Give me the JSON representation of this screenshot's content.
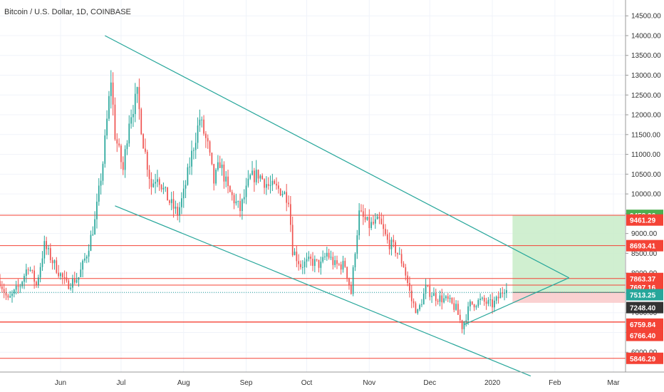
{
  "header": {
    "title": "Bitcoin / U.S. Dollar, 1D, COINBASE"
  },
  "colors": {
    "up": "#26a69a",
    "down": "#ef5350",
    "trendline": "#26a69a",
    "resistance": "#f44336",
    "target_zone": "#c8ecc8",
    "stop_zone": "#f9cccc",
    "grid": "#f0f3fa",
    "axis_text": "#333333"
  },
  "chart_data": {
    "type": "candlestick",
    "symbol": "Bitcoin / U.S. Dollar",
    "interval": "1D",
    "exchange": "COINBASE",
    "ylim": [
      5500,
      14900
    ],
    "y_ticks": [
      6000,
      6500,
      7000,
      7500,
      8000,
      8500,
      9000,
      9500,
      10000,
      10500,
      11000,
      11500,
      12000,
      12500,
      13000,
      13500,
      14000,
      14500
    ],
    "y_tick_labels": [
      "6000.00",
      "6500.00",
      "7000.00",
      "7500.00",
      "8000.00",
      "8500.00",
      "9000.00",
      "9500.00",
      "10000.00",
      "10500.00",
      "11000.00",
      "11500.00",
      "12000.00",
      "12500.00",
      "13000.00",
      "13500.00",
      "14000.00",
      "14500.00"
    ],
    "x_range": [
      "2019-05-02",
      "2020-03-07"
    ],
    "x_ticks": [
      {
        "label": "Jun",
        "date": "2019-06-01"
      },
      {
        "label": "Jul",
        "date": "2019-07-01"
      },
      {
        "label": "Aug",
        "date": "2019-08-01"
      },
      {
        "label": "Sep",
        "date": "2019-09-01"
      },
      {
        "label": "Oct",
        "date": "2019-10-01"
      },
      {
        "label": "Nov",
        "date": "2019-11-01"
      },
      {
        "label": "Dec",
        "date": "2019-12-01"
      },
      {
        "label": "2020",
        "date": "2020-01-01"
      },
      {
        "label": "Feb",
        "date": "2020-02-01"
      },
      {
        "label": "Mar",
        "date": "2020-03-01"
      }
    ],
    "price_path": [
      {
        "date": "2019-05-02",
        "price": 7800
      },
      {
        "date": "2019-05-06",
        "price": 7300
      },
      {
        "date": "2019-05-12",
        "price": 7700
      },
      {
        "date": "2019-05-16",
        "price": 8200
      },
      {
        "date": "2019-05-20",
        "price": 7700
      },
      {
        "date": "2019-05-24",
        "price": 8700
      },
      {
        "date": "2019-05-28",
        "price": 8300
      },
      {
        "date": "2019-06-04",
        "price": 7700
      },
      {
        "date": "2019-06-10",
        "price": 7900
      },
      {
        "date": "2019-06-14",
        "price": 8500
      },
      {
        "date": "2019-06-18",
        "price": 9300
      },
      {
        "date": "2019-06-22",
        "price": 10800
      },
      {
        "date": "2019-06-26",
        "price": 12900
      },
      {
        "date": "2019-06-28",
        "price": 11500
      },
      {
        "date": "2019-07-02",
        "price": 10600
      },
      {
        "date": "2019-07-05",
        "price": 11900
      },
      {
        "date": "2019-07-09",
        "price": 12500
      },
      {
        "date": "2019-07-12",
        "price": 11300
      },
      {
        "date": "2019-07-16",
        "price": 10200
      },
      {
        "date": "2019-07-19",
        "price": 10500
      },
      {
        "date": "2019-07-22",
        "price": 10100
      },
      {
        "date": "2019-07-25",
        "price": 9800
      },
      {
        "date": "2019-07-29",
        "price": 9500
      },
      {
        "date": "2019-08-01",
        "price": 10000
      },
      {
        "date": "2019-08-05",
        "price": 11000
      },
      {
        "date": "2019-08-09",
        "price": 11900
      },
      {
        "date": "2019-08-13",
        "price": 11200
      },
      {
        "date": "2019-08-16",
        "price": 10300
      },
      {
        "date": "2019-08-19",
        "price": 10800
      },
      {
        "date": "2019-08-23",
        "price": 10100
      },
      {
        "date": "2019-08-29",
        "price": 9600
      },
      {
        "date": "2019-09-03",
        "price": 10400
      },
      {
        "date": "2019-09-07",
        "price": 10500
      },
      {
        "date": "2019-09-12",
        "price": 10200
      },
      {
        "date": "2019-09-18",
        "price": 10100
      },
      {
        "date": "2019-09-22",
        "price": 9900
      },
      {
        "date": "2019-09-24",
        "price": 8600
      },
      {
        "date": "2019-09-28",
        "price": 8200
      },
      {
        "date": "2019-10-03",
        "price": 8300
      },
      {
        "date": "2019-10-08",
        "price": 8200
      },
      {
        "date": "2019-10-11",
        "price": 8500
      },
      {
        "date": "2019-10-15",
        "price": 8200
      },
      {
        "date": "2019-10-20",
        "price": 8200
      },
      {
        "date": "2019-10-23",
        "price": 7500
      },
      {
        "date": "2019-10-25",
        "price": 8600
      },
      {
        "date": "2019-10-27",
        "price": 9500
      },
      {
        "date": "2019-11-01",
        "price": 9200
      },
      {
        "date": "2019-11-06",
        "price": 9300
      },
      {
        "date": "2019-11-10",
        "price": 8800
      },
      {
        "date": "2019-11-14",
        "price": 8600
      },
      {
        "date": "2019-11-18",
        "price": 8200
      },
      {
        "date": "2019-11-22",
        "price": 7300
      },
      {
        "date": "2019-11-25",
        "price": 7000
      },
      {
        "date": "2019-11-29",
        "price": 7600
      },
      {
        "date": "2019-12-04",
        "price": 7400
      },
      {
        "date": "2019-12-10",
        "price": 7300
      },
      {
        "date": "2019-12-14",
        "price": 7100
      },
      {
        "date": "2019-12-17",
        "price": 6650
      },
      {
        "date": "2019-12-21",
        "price": 7200
      },
      {
        "date": "2019-12-26",
        "price": 7300
      },
      {
        "date": "2020-01-01",
        "price": 7200
      },
      {
        "date": "2020-01-03",
        "price": 7300
      },
      {
        "date": "2020-01-08",
        "price": 7700
      }
    ],
    "trendlines": [
      {
        "name": "wedge-upper",
        "from": {
          "date": "2019-06-23",
          "price": 14000
        },
        "to": {
          "date": "2020-02-08",
          "price": 7880
        }
      },
      {
        "name": "wedge-lower",
        "from": {
          "date": "2019-06-28",
          "price": 9700
        },
        "to": {
          "date": "2020-01-20",
          "price": 5400
        }
      },
      {
        "name": "triangle-lower",
        "from": {
          "date": "2019-12-18",
          "price": 6700
        },
        "to": {
          "date": "2020-02-08",
          "price": 7880
        }
      }
    ],
    "horizontal_lines": [
      {
        "price": 9461.29,
        "label": "9461.29",
        "style": "red"
      },
      {
        "price": 8693.41,
        "label": "8693.41",
        "style": "red"
      },
      {
        "price": 7863.37,
        "label": "7863.37",
        "style": "red"
      },
      {
        "price": 7697.16,
        "label": "7697.16",
        "style": "red"
      },
      {
        "price": 6759.84,
        "label": "6759.84",
        "style": "red"
      },
      {
        "price": 6766.4,
        "label": "6766.40",
        "style": "red"
      },
      {
        "price": 5846.29,
        "label": "5846.29",
        "style": "red"
      }
    ],
    "position": {
      "type": "long",
      "start": "2020-01-11",
      "end": "2020-03-09",
      "entry": 7513.25,
      "target": 9458.96,
      "stop": 7248.4,
      "labels": {
        "target": "9458.96",
        "entry": "7513.25",
        "stop": "7248.40"
      }
    },
    "last_price": {
      "value": 7513.25,
      "label": "7513.25"
    }
  }
}
